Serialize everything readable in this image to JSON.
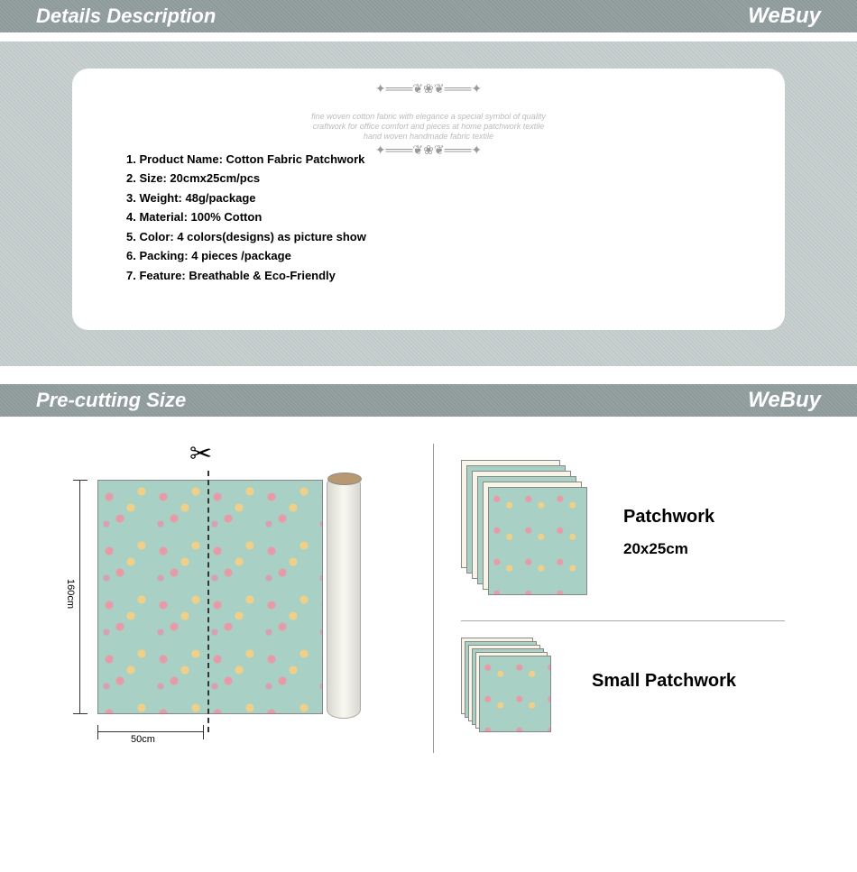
{
  "sections": {
    "details": {
      "title": "Details Description",
      "brand": "WeBuy"
    },
    "precut": {
      "title": "Pre-cutting Size",
      "brand": "WeBuy"
    }
  },
  "details_list": [
    "1. Product Name: Cotton Fabric  Patchwork",
    "2. Size:  20cmx25cm/pcs",
    "3. Weight: 48g/package",
    "4. Material: 100% Cotton",
    "5. Color:  4 colors(designs) as picture show",
    "6. Packing:   4 pieces /package",
    "7. Feature: Breathable & Eco-Friendly"
  ],
  "roll": {
    "height_label": "160cm",
    "width_label": "50cm"
  },
  "patches": {
    "large": {
      "title": "Patchwork",
      "size": "20x25cm"
    },
    "small": {
      "title": "Small Patchwork"
    }
  },
  "colors": {
    "header_bg": "#8a9696",
    "panel_bg": "#bcc5c5",
    "fabric_base": "#a8d0c4",
    "fabric_alt": "#f8f4e8",
    "roll_core": "#b89870"
  },
  "flourish": {
    "top": "✦═══❦❀❦═══✦",
    "tagline": "fine woven cotton fabric with elegance a special symbol of quality craftwork for office comfort and pieces at home patchwork textile hand woven handmade fabric textile",
    "bottom": "✦═══❦❀❦═══✦"
  }
}
